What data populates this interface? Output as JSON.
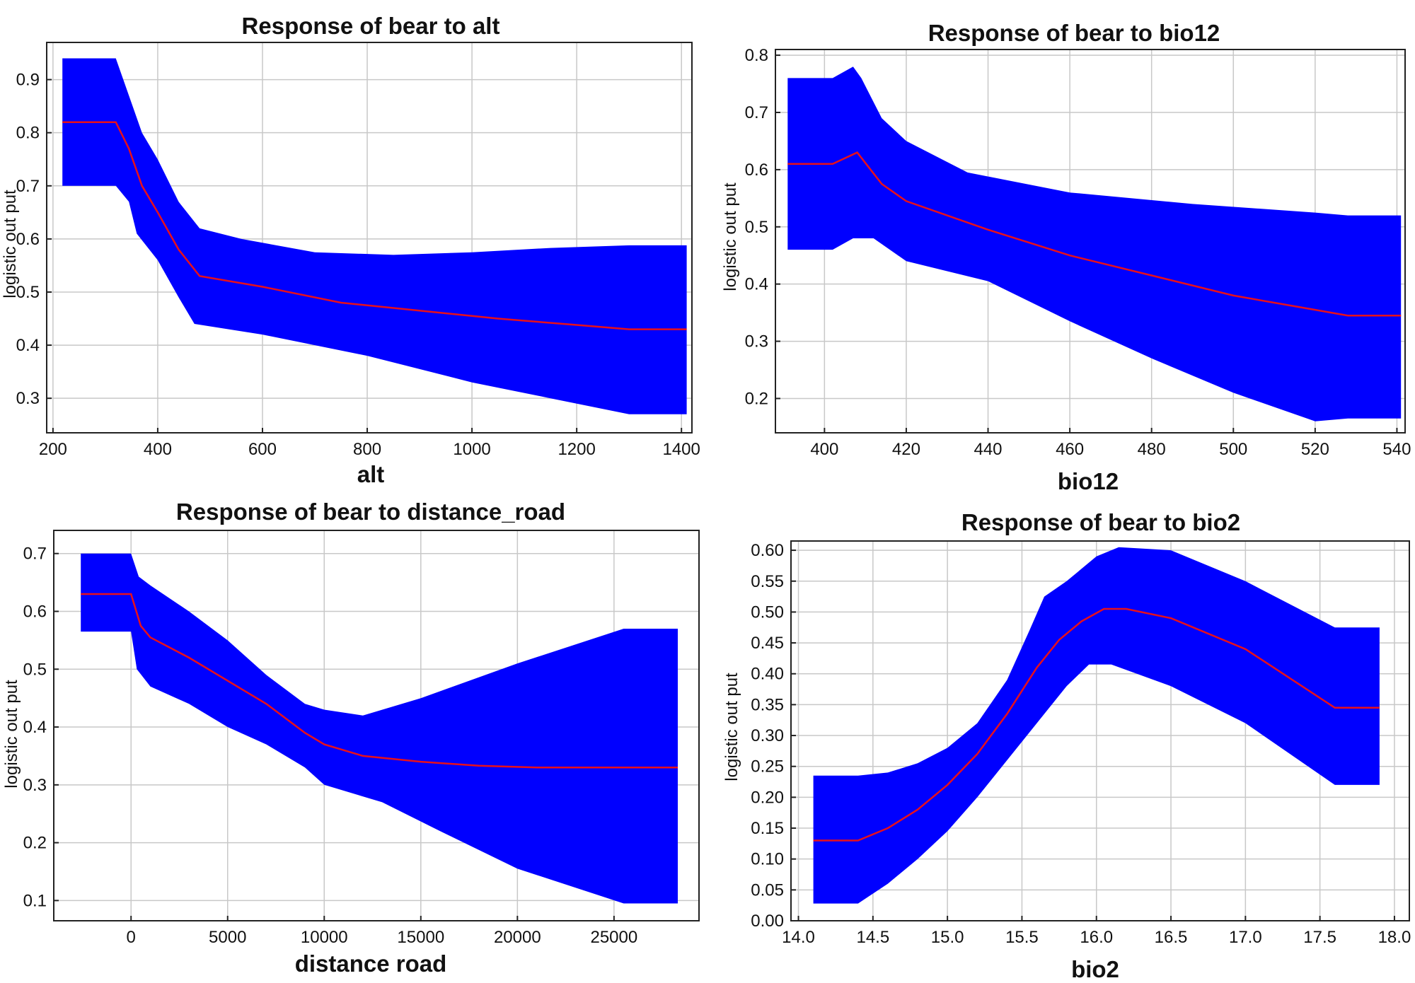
{
  "chart_data": [
    {
      "type": "area",
      "title": "Response of bear to alt",
      "xlabel": "alt",
      "ylabel": "logistic out put",
      "xlim": [
        188,
        1420
      ],
      "ylim": [
        0.235,
        0.97
      ],
      "xticks": [
        200,
        400,
        600,
        800,
        1000,
        1200,
        1400
      ],
      "yticks": [
        0.3,
        0.4,
        0.5,
        0.6,
        0.7,
        0.8,
        0.9
      ],
      "ytick_labels": [
        "0.3",
        "0.4",
        "0.5",
        "0.6",
        "0.7",
        "0.8",
        "0.9"
      ],
      "series": [
        {
          "name": "upper",
          "x": [
            218,
            320,
            345,
            370,
            400,
            440,
            480,
            560,
            700,
            850,
            1000,
            1150,
            1300,
            1410
          ],
          "values": [
            0.94,
            0.94,
            0.87,
            0.8,
            0.75,
            0.67,
            0.62,
            0.6,
            0.575,
            0.57,
            0.575,
            0.583,
            0.588,
            0.588
          ]
        },
        {
          "name": "mean",
          "x": [
            218,
            320,
            345,
            370,
            400,
            440,
            480,
            600,
            750,
            900,
            1050,
            1200,
            1300,
            1410
          ],
          "values": [
            0.82,
            0.82,
            0.77,
            0.7,
            0.65,
            0.58,
            0.53,
            0.51,
            0.48,
            0.465,
            0.45,
            0.438,
            0.43,
            0.43
          ]
        },
        {
          "name": "lower",
          "x": [
            218,
            320,
            345,
            360,
            400,
            440,
            470,
            600,
            800,
            1000,
            1150,
            1300,
            1410
          ],
          "values": [
            0.7,
            0.7,
            0.67,
            0.61,
            0.56,
            0.49,
            0.44,
            0.42,
            0.38,
            0.33,
            0.3,
            0.27,
            0.27
          ]
        }
      ]
    },
    {
      "type": "area",
      "title": "Response of bear to bio12",
      "xlabel": "bio12",
      "ylabel": "logistic out put",
      "xlim": [
        388,
        542
      ],
      "ylim": [
        0.14,
        0.81
      ],
      "xticks": [
        400,
        420,
        440,
        460,
        480,
        500,
        520,
        540
      ],
      "yticks": [
        0.2,
        0.3,
        0.4,
        0.5,
        0.6,
        0.7,
        0.8
      ],
      "ytick_labels": [
        "0.2",
        "0.3",
        "0.4",
        "0.5",
        "0.6",
        "0.7",
        "0.8"
      ],
      "series": [
        {
          "name": "upper",
          "x": [
            391,
            402,
            407,
            409,
            414,
            420,
            435,
            460,
            490,
            520,
            528,
            541
          ],
          "values": [
            0.76,
            0.76,
            0.78,
            0.76,
            0.69,
            0.65,
            0.595,
            0.56,
            0.54,
            0.525,
            0.52,
            0.52
          ]
        },
        {
          "name": "mean",
          "x": [
            391,
            402,
            408,
            414,
            420,
            440,
            460,
            480,
            500,
            520,
            528,
            541
          ],
          "values": [
            0.61,
            0.61,
            0.63,
            0.575,
            0.545,
            0.495,
            0.45,
            0.415,
            0.38,
            0.355,
            0.345,
            0.345
          ]
        },
        {
          "name": "lower",
          "x": [
            391,
            402,
            407,
            412,
            420,
            440,
            460,
            480,
            500,
            520,
            528,
            541
          ],
          "values": [
            0.46,
            0.46,
            0.48,
            0.48,
            0.44,
            0.405,
            0.335,
            0.27,
            0.21,
            0.16,
            0.165,
            0.165
          ]
        }
      ]
    },
    {
      "type": "area",
      "title": "Response of bear to distance_road",
      "xlabel": "distance road",
      "ylabel": "logistic out put",
      "xlim": [
        -4000,
        29400
      ],
      "ylim": [
        0.065,
        0.74
      ],
      "xticks": [
        0,
        5000,
        10000,
        15000,
        20000,
        25000
      ],
      "yticks": [
        0.1,
        0.2,
        0.3,
        0.4,
        0.5,
        0.6,
        0.7
      ],
      "ytick_labels": [
        "0.1",
        "0.2",
        "0.3",
        "0.4",
        "0.5",
        "0.6",
        "0.7"
      ],
      "series": [
        {
          "name": "upper",
          "x": [
            -2600,
            0,
            200,
            400,
            1000,
            3000,
            5000,
            7000,
            9000,
            10000,
            12000,
            15000,
            20000,
            25500,
            28300
          ],
          "values": [
            0.7,
            0.7,
            0.68,
            0.66,
            0.645,
            0.6,
            0.55,
            0.49,
            0.44,
            0.43,
            0.42,
            0.45,
            0.51,
            0.57,
            0.57
          ]
        },
        {
          "name": "mean",
          "x": [
            -2600,
            0,
            500,
            1000,
            3000,
            5000,
            7000,
            9000,
            10000,
            12000,
            15000,
            18000,
            21000,
            25500,
            28300
          ],
          "values": [
            0.63,
            0.63,
            0.575,
            0.555,
            0.52,
            0.48,
            0.44,
            0.39,
            0.37,
            0.35,
            0.34,
            0.333,
            0.33,
            0.33,
            0.33
          ]
        },
        {
          "name": "lower",
          "x": [
            -2600,
            0,
            300,
            1000,
            3000,
            5000,
            7000,
            9000,
            10000,
            13000,
            16000,
            20000,
            25500,
            28300
          ],
          "values": [
            0.565,
            0.565,
            0.5,
            0.47,
            0.44,
            0.4,
            0.37,
            0.33,
            0.3,
            0.27,
            0.22,
            0.155,
            0.095,
            0.095
          ]
        }
      ]
    },
    {
      "type": "area",
      "title": "Response of bear to bio2",
      "xlabel": "bio2",
      "ylabel": "logistic out put",
      "xlim": [
        13.95,
        18.1
      ],
      "ylim": [
        0.0,
        0.615
      ],
      "xticks": [
        14.0,
        14.5,
        15.0,
        15.5,
        16.0,
        16.5,
        17.0,
        17.5,
        18.0
      ],
      "xtick_labels": [
        "14.0",
        "14.5",
        "15.0",
        "15.5",
        "16.0",
        "16.5",
        "17.0",
        "17.5",
        "18.0"
      ],
      "yticks": [
        0.0,
        0.05,
        0.1,
        0.15,
        0.2,
        0.25,
        0.3,
        0.35,
        0.4,
        0.45,
        0.5,
        0.55,
        0.6
      ],
      "ytick_labels": [
        "0.00",
        "0.05",
        "0.10",
        "0.15",
        "0.20",
        "0.25",
        "0.30",
        "0.35",
        "0.40",
        "0.45",
        "0.50",
        "0.55",
        "0.60"
      ],
      "series": [
        {
          "name": "upper",
          "x": [
            14.1,
            14.4,
            14.6,
            14.8,
            15.0,
            15.2,
            15.4,
            15.55,
            15.65,
            15.8,
            16.0,
            16.15,
            16.5,
            17.0,
            17.6,
            17.9
          ],
          "values": [
            0.235,
            0.235,
            0.24,
            0.255,
            0.28,
            0.32,
            0.39,
            0.47,
            0.525,
            0.55,
            0.59,
            0.605,
            0.6,
            0.55,
            0.475,
            0.475
          ]
        },
        {
          "name": "mean",
          "x": [
            14.1,
            14.4,
            14.6,
            14.8,
            15.0,
            15.2,
            15.4,
            15.6,
            15.75,
            15.9,
            16.05,
            16.2,
            16.5,
            17.0,
            17.6,
            17.9
          ],
          "values": [
            0.13,
            0.13,
            0.15,
            0.18,
            0.22,
            0.27,
            0.335,
            0.41,
            0.455,
            0.485,
            0.505,
            0.505,
            0.49,
            0.44,
            0.345,
            0.345
          ]
        },
        {
          "name": "lower",
          "x": [
            14.1,
            14.4,
            14.6,
            14.8,
            15.0,
            15.2,
            15.4,
            15.6,
            15.8,
            15.95,
            16.1,
            16.5,
            17.0,
            17.6,
            17.9
          ],
          "values": [
            0.028,
            0.028,
            0.06,
            0.1,
            0.145,
            0.2,
            0.26,
            0.32,
            0.38,
            0.415,
            0.415,
            0.38,
            0.32,
            0.22,
            0.22
          ]
        }
      ]
    }
  ],
  "colors": {
    "band": "#0000ff",
    "mean_line": "#e8101a"
  }
}
